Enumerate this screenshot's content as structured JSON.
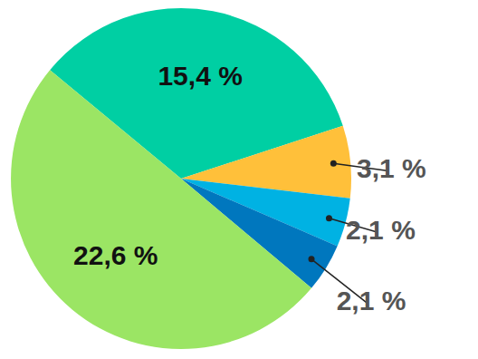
{
  "chart_data": {
    "type": "pie",
    "categories": [
      null,
      null,
      null,
      null,
      null
    ],
    "values": [
      15.4,
      3.1,
      2.1,
      2.1,
      22.6
    ],
    "value_labels": [
      "15,4 %",
      "3,1 %",
      "2,1 %",
      "2,1 %",
      "22,6 %"
    ],
    "colors": [
      "#00cfa3",
      "#ffc03a",
      "#00b2e3",
      "#0077be",
      "#9be564"
    ],
    "data_labels": true
  }
}
